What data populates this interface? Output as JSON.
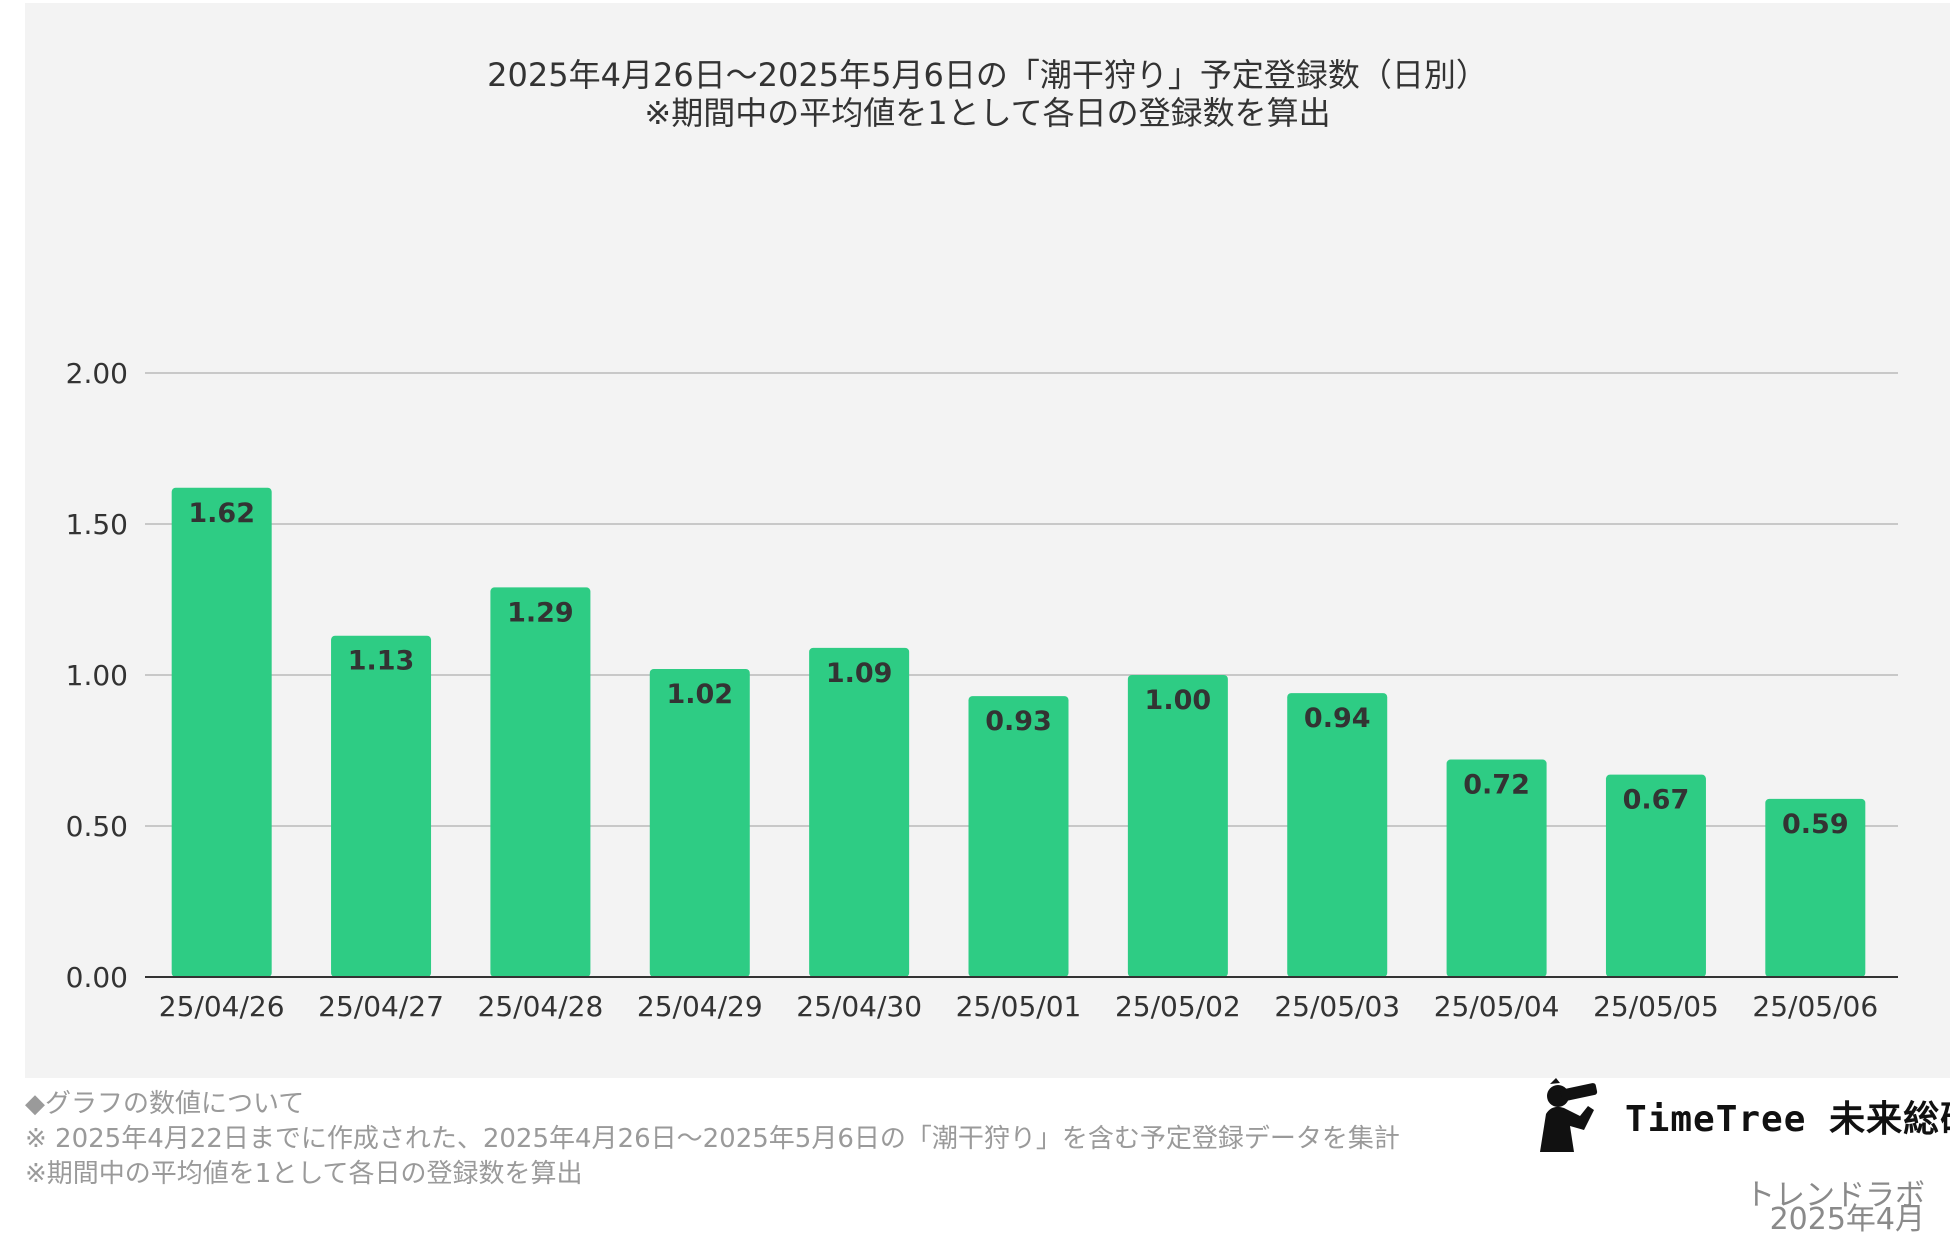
{
  "chart_data": {
    "type": "bar",
    "title": "2025年4月26日〜2025年5月6日の「潮干狩り」予定登録数（日別）",
    "subtitle": "※期間中の平均値を1として各日の登録数を算出",
    "categories": [
      "25/04/26",
      "25/04/27",
      "25/04/28",
      "25/04/29",
      "25/04/30",
      "25/05/01",
      "25/05/02",
      "25/05/03",
      "25/05/04",
      "25/05/05",
      "25/05/06"
    ],
    "values": [
      1.62,
      1.13,
      1.29,
      1.02,
      1.09,
      0.93,
      1.0,
      0.94,
      0.72,
      0.67,
      0.59
    ],
    "value_labels": [
      "1.62",
      "1.13",
      "1.29",
      "1.02",
      "1.09",
      "0.93",
      "1.00",
      "0.94",
      "0.72",
      "0.67",
      "0.59"
    ],
    "ylim": [
      0,
      2
    ],
    "yticks": [
      "0.00",
      "0.50",
      "1.00",
      "1.50",
      "2.00"
    ],
    "xlabel": "",
    "ylabel": "",
    "grid": true,
    "bar_color": "#2ecc84"
  },
  "notes": [
    "◆グラフの数値について",
    "※ 2025年4月22日までに作成された、2025年4月26日〜2025年5月6日の「潮干狩り」を含む予定登録データを集計",
    "※期間中の平均値を1として各日の登録数を算出"
  ],
  "brand": {
    "name": "TimeTree 未来総研",
    "sub": "トレンドラボ",
    "date": "2025年4月",
    "logo_icon": "binoculars-person-icon"
  }
}
